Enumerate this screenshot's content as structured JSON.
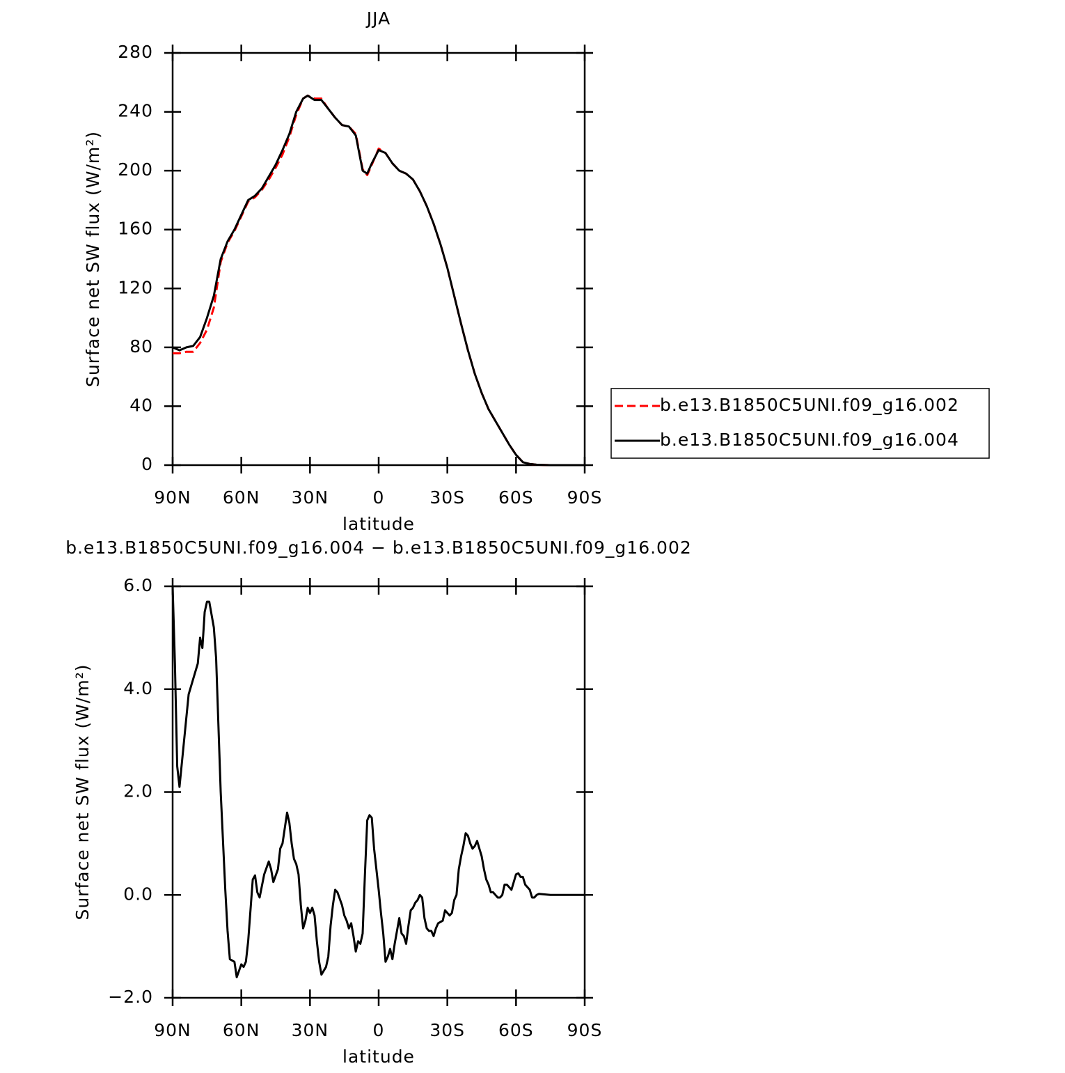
{
  "chart_data": [
    {
      "type": "line",
      "title": "JJA",
      "xlabel": "latitude",
      "ylabel": "Surface net SW flux (W/m²)",
      "xlim": [
        90,
        -90
      ],
      "xticks": [
        {
          "value": 90,
          "label": "90N"
        },
        {
          "value": 60,
          "label": "60N"
        },
        {
          "value": 30,
          "label": "30N"
        },
        0,
        {
          "value": -30,
          "label": "30S"
        },
        {
          "value": -60,
          "label": "60S"
        },
        {
          "value": -90,
          "label": "90S"
        }
      ],
      "ylim": [
        0,
        280
      ],
      "yticks": [
        0,
        40,
        80,
        120,
        160,
        200,
        240,
        280
      ],
      "legend": "right",
      "x": [
        90,
        87,
        84,
        81,
        78,
        75,
        72,
        69,
        66,
        63,
        60,
        57,
        54,
        51,
        48,
        45,
        42,
        39,
        36,
        33,
        31,
        28,
        25,
        22,
        19,
        16,
        13,
        10,
        7,
        5,
        3,
        0,
        -3,
        -6,
        -9,
        -12,
        -15,
        -18,
        -21,
        -24,
        -27,
        -30,
        -33,
        -36,
        -39,
        -42,
        -45,
        -48,
        -51,
        -54,
        -57,
        -60,
        -63,
        -66,
        -69,
        -72,
        -75,
        -80,
        -85,
        -90
      ],
      "series": [
        {
          "name": "b.e13.B1850C5UNI.f09_g16.002",
          "color": "#ff0000",
          "linestyle": "dashed",
          "values": [
            76,
            76,
            77,
            77,
            83,
            92,
            107,
            138,
            151,
            159,
            169,
            179,
            182,
            187,
            194,
            202,
            211,
            223,
            238,
            249,
            251,
            249,
            249,
            242,
            236,
            231,
            230,
            225,
            201,
            197,
            204,
            215,
            212,
            205,
            200,
            198,
            194,
            186,
            176,
            164,
            150,
            134,
            115,
            96,
            78,
            62,
            49,
            38,
            30,
            22,
            14,
            7,
            2,
            0.8,
            0.3,
            0.1,
            0,
            0,
            0,
            0
          ]
        },
        {
          "name": "b.e13.B1850C5UNI.f09_g16.004",
          "color": "#000000",
          "linestyle": "solid",
          "values": [
            80,
            78,
            80,
            81,
            87,
            100,
            115,
            140,
            152,
            160,
            170,
            180,
            183,
            188,
            196,
            204,
            214,
            225,
            240,
            249,
            251,
            248,
            248,
            242,
            236,
            231,
            230,
            224,
            200,
            198,
            205,
            214,
            212,
            205,
            200,
            198,
            194,
            186,
            176,
            164,
            150,
            134,
            115,
            96,
            78,
            62,
            49,
            38,
            30,
            22,
            14,
            7,
            2,
            0.8,
            0.3,
            0.1,
            0,
            0,
            0,
            0
          ]
        }
      ]
    },
    {
      "type": "line",
      "title": "b.e13.B1850C5UNI.f09_g16.004 − b.e13.B1850C5UNI.f09_g16.002",
      "xlabel": "latitude",
      "ylabel": "Surface net SW flux (W/m²)",
      "xlim": [
        90,
        -90
      ],
      "xticks": [
        {
          "value": 90,
          "label": "90N"
        },
        {
          "value": 60,
          "label": "60N"
        },
        {
          "value": 30,
          "label": "30N"
        },
        0,
        {
          "value": -30,
          "label": "30S"
        },
        {
          "value": -60,
          "label": "60S"
        },
        {
          "value": -90,
          "label": "90S"
        }
      ],
      "ylim": [
        -2,
        6
      ],
      "yticks": [
        {
          "value": -2,
          "label": "−2.0"
        },
        {
          "value": 0,
          "label": "0.0"
        },
        {
          "value": 2,
          "label": "2.0"
        },
        {
          "value": 4,
          "label": "4.0"
        },
        {
          "value": 6,
          "label": "6.0"
        }
      ],
      "x": [
        90,
        89,
        88,
        87,
        85,
        83,
        81,
        79,
        78,
        77,
        76,
        75,
        74,
        72,
        71,
        69,
        67,
        66,
        65,
        63,
        62,
        60,
        59,
        58,
        57,
        55,
        54,
        53,
        52,
        50,
        48,
        47,
        46,
        44,
        43,
        42,
        40,
        39,
        38,
        37,
        36,
        35,
        34,
        33,
        32,
        31,
        30,
        29,
        28,
        27,
        26,
        25,
        23,
        22,
        21,
        20,
        19,
        18,
        16,
        15,
        14,
        13,
        12,
        11,
        10,
        9,
        8,
        7,
        6,
        5,
        4,
        3,
        2,
        1,
        0,
        -1,
        -2,
        -3,
        -4,
        -5,
        -6,
        -7,
        -8,
        -9,
        -10,
        -11,
        -12,
        -13,
        -14,
        -15,
        -16,
        -17,
        -18,
        -19,
        -20,
        -21,
        -22,
        -23,
        -24,
        -25,
        -26,
        -28,
        -29,
        -30,
        -31,
        -32,
        -33,
        -34,
        -35,
        -36,
        -37,
        -38,
        -39,
        -40,
        -41,
        -42,
        -43,
        -44,
        -45,
        -46,
        -47,
        -48,
        -49,
        -50,
        -51,
        -52,
        -53,
        -54,
        -55,
        -56,
        -57,
        -58,
        -59,
        -60,
        -61,
        -62,
        -63,
        -64,
        -65,
        -66,
        -67,
        -68,
        -69,
        -70,
        -75,
        -90
      ],
      "series": [
        {
          "color": "#000000",
          "linestyle": "solid",
          "values": [
            6.0,
            4.5,
            2.5,
            2.1,
            3.0,
            3.9,
            4.2,
            4.5,
            5.0,
            4.8,
            5.5,
            5.7,
            5.7,
            5.2,
            4.6,
            2.0,
            0.1,
            -0.7,
            -1.25,
            -1.3,
            -1.6,
            -1.35,
            -1.4,
            -1.3,
            -0.9,
            0.3,
            0.38,
            0.05,
            -0.05,
            0.4,
            0.65,
            0.5,
            0.25,
            0.5,
            0.9,
            1.0,
            1.6,
            1.4,
            1.0,
            0.7,
            0.6,
            0.4,
            -0.2,
            -0.65,
            -0.5,
            -0.25,
            -0.35,
            -0.25,
            -0.4,
            -0.9,
            -1.3,
            -1.55,
            -1.4,
            -1.2,
            -0.6,
            -0.2,
            0.1,
            0.05,
            -0.2,
            -0.4,
            -0.5,
            -0.65,
            -0.55,
            -0.8,
            -1.1,
            -0.9,
            -0.95,
            -0.75,
            0.4,
            1.45,
            1.55,
            1.5,
            0.9,
            0.5,
            0.1,
            -0.35,
            -0.75,
            -1.3,
            -1.2,
            -1.05,
            -1.25,
            -0.95,
            -0.7,
            -0.45,
            -0.75,
            -0.8,
            -0.95,
            -0.6,
            -0.3,
            -0.25,
            -0.15,
            -0.1,
            0.0,
            -0.05,
            -0.45,
            -0.65,
            -0.7,
            -0.7,
            -0.8,
            -0.65,
            -0.55,
            -0.5,
            -0.3,
            -0.35,
            -0.4,
            -0.35,
            -0.1,
            0.0,
            0.5,
            0.75,
            0.95,
            1.2,
            1.15,
            1.0,
            0.9,
            0.95,
            1.05,
            0.9,
            0.75,
            0.5,
            0.3,
            0.2,
            0.05,
            0.05,
            0.0,
            -0.05,
            -0.05,
            0.0,
            0.2,
            0.2,
            0.15,
            0.1,
            0.25,
            0.4,
            0.42,
            0.35,
            0.35,
            0.2,
            0.15,
            0.1,
            -0.05,
            -0.05,
            0.0,
            0.02,
            0.0,
            0.0
          ]
        }
      ]
    }
  ]
}
